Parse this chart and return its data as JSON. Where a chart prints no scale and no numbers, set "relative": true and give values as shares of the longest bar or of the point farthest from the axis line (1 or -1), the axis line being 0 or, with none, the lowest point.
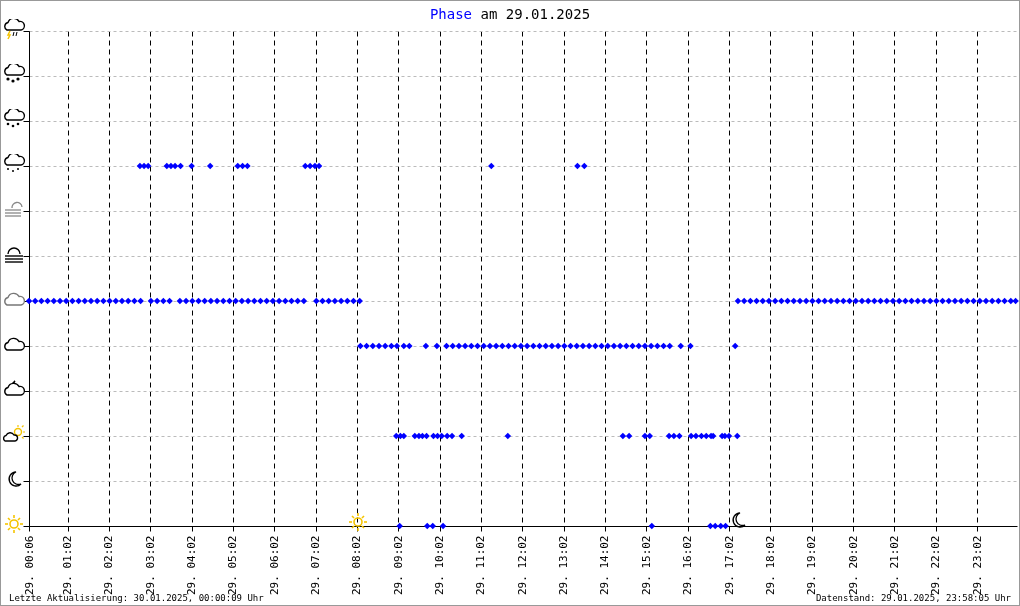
{
  "chart_data": {
    "type": "scatter",
    "title": "Phase am 29.01.2025",
    "annotations": [
      "Letzte Aktualisierung: 30.01.2025, 00:00:09 Uhr",
      "Datenstand: 29.01.2025, 23:58:05 Uhr"
    ],
    "xlim": [
      "2025-01-29T00:06",
      "2025-01-30T00:00"
    ],
    "xticks": [
      {
        "value": "2025-01-29T00:06",
        "label": "29. 00:06"
      },
      {
        "value": "2025-01-29T01:02",
        "label": "29. 01:02"
      },
      {
        "value": "2025-01-29T02:02",
        "label": "29. 02:02"
      },
      {
        "value": "2025-01-29T03:02",
        "label": "29. 03:02"
      },
      {
        "value": "2025-01-29T04:02",
        "label": "29. 04:02"
      },
      {
        "value": "2025-01-29T05:02",
        "label": "29. 05:02"
      },
      {
        "value": "2025-01-29T06:02",
        "label": "29. 06:02"
      },
      {
        "value": "2025-01-29T07:02",
        "label": "29. 07:02"
      },
      {
        "value": "2025-01-29T08:02",
        "label": "29. 08:02"
      },
      {
        "value": "2025-01-29T09:02",
        "label": "29. 09:02"
      },
      {
        "value": "2025-01-29T10:02",
        "label": "29. 10:02"
      },
      {
        "value": "2025-01-29T11:02",
        "label": "29. 11:02"
      },
      {
        "value": "2025-01-29T12:02",
        "label": "29. 12:02"
      },
      {
        "value": "2025-01-29T13:02",
        "label": "29. 13:02"
      },
      {
        "value": "2025-01-29T14:02",
        "label": "29. 14:02"
      },
      {
        "value": "2025-01-29T15:02",
        "label": "29. 15:02"
      },
      {
        "value": "2025-01-29T16:02",
        "label": "29. 16:02"
      },
      {
        "value": "2025-01-29T17:02",
        "label": "29. 17:02"
      },
      {
        "value": "2025-01-29T18:02",
        "label": "29. 18:02"
      },
      {
        "value": "2025-01-29T19:02",
        "label": "29. 19:02"
      },
      {
        "value": "2025-01-29T20:02",
        "label": "29. 20:02"
      },
      {
        "value": "2025-01-29T21:02",
        "label": "29. 21:02"
      },
      {
        "value": "2025-01-29T22:02",
        "label": "29. 22:02"
      },
      {
        "value": "2025-01-29T23:02",
        "label": "29. 23:02"
      }
    ],
    "relative": true,
    "grid": true,
    "marker": "diamond",
    "series": [
      {
        "color": "#0000ff",
        "x": [
          "2025-01-29T00:06",
          "2025-01-29T00:15",
          "2025-01-29T00:24",
          "2025-01-29T00:33",
          "2025-01-29T00:42",
          "2025-01-29T00:51",
          "2025-01-29T01:00",
          "2025-01-29T01:09",
          "2025-01-29T01:18",
          "2025-01-29T01:27",
          "2025-01-29T01:36",
          "2025-01-29T01:45",
          "2025-01-29T01:54",
          "2025-01-29T02:03",
          "2025-01-29T02:12",
          "2025-01-29T02:21",
          "2025-01-29T02:30",
          "2025-01-29T02:39",
          "2025-01-29T02:48",
          "2025-01-29T03:03",
          "2025-01-29T03:12",
          "2025-01-29T03:21",
          "2025-01-29T03:30",
          "2025-01-29T03:45",
          "2025-01-29T03:54",
          "2025-01-29T04:03",
          "2025-01-29T04:12",
          "2025-01-29T04:21",
          "2025-01-29T04:30",
          "2025-01-29T04:39",
          "2025-01-29T04:48",
          "2025-01-29T04:57",
          "2025-01-29T05:06",
          "2025-01-29T05:15",
          "2025-01-29T05:24",
          "2025-01-29T05:33",
          "2025-01-29T05:42",
          "2025-01-29T05:51",
          "2025-01-29T06:00",
          "2025-01-29T06:09",
          "2025-01-29T06:18",
          "2025-01-29T06:27",
          "2025-01-29T06:36",
          "2025-01-29T06:45",
          "2025-01-29T07:03",
          "2025-01-29T07:12",
          "2025-01-29T07:21",
          "2025-01-29T07:30",
          "2025-01-29T07:39",
          "2025-01-29T07:48",
          "2025-01-29T07:57",
          "2025-01-29T08:06",
          "2025-01-29T17:15",
          "2025-01-29T17:24",
          "2025-01-29T17:33",
          "2025-01-29T17:42",
          "2025-01-29T17:51",
          "2025-01-29T18:00",
          "2025-01-29T18:09",
          "2025-01-29T18:18",
          "2025-01-29T18:27",
          "2025-01-29T18:36",
          "2025-01-29T18:45",
          "2025-01-29T18:54",
          "2025-01-29T19:03",
          "2025-01-29T19:12",
          "2025-01-29T19:21",
          "2025-01-29T19:30",
          "2025-01-29T19:39",
          "2025-01-29T19:48",
          "2025-01-29T19:57",
          "2025-01-29T20:06",
          "2025-01-29T20:15",
          "2025-01-29T20:24",
          "2025-01-29T20:33",
          "2025-01-29T20:42",
          "2025-01-29T20:51",
          "2025-01-29T21:00",
          "2025-01-29T21:09",
          "2025-01-29T21:18",
          "2025-01-29T21:27",
          "2025-01-29T21:36",
          "2025-01-29T21:45",
          "2025-01-29T21:54",
          "2025-01-29T22:03",
          "2025-01-29T22:12",
          "2025-01-29T22:21",
          "2025-01-29T22:30",
          "2025-01-29T22:39",
          "2025-01-29T22:48",
          "2025-01-29T22:57",
          "2025-01-29T23:06",
          "2025-01-29T23:15",
          "2025-01-29T23:24",
          "2025-01-29T23:33",
          "2025-01-29T23:42",
          "2025-01-29T23:51",
          "2025-01-29T23:58",
          "2025-01-29T02:47",
          "2025-01-29T02:53",
          "2025-01-29T02:59",
          "2025-01-29T03:26",
          "2025-01-29T03:32",
          "2025-01-29T03:38",
          "2025-01-29T03:46",
          "2025-01-29T04:02",
          "2025-01-29T04:29",
          "2025-01-29T05:09",
          "2025-01-29T05:16",
          "2025-01-29T05:23",
          "2025-01-29T06:47",
          "2025-01-29T06:54",
          "2025-01-29T07:01",
          "2025-01-29T07:07",
          "2025-01-29T11:17",
          "2025-01-29T13:22",
          "2025-01-29T13:32",
          "2025-01-29T08:07",
          "2025-01-29T08:16",
          "2025-01-29T08:25",
          "2025-01-29T08:34",
          "2025-01-29T08:43",
          "2025-01-29T08:52",
          "2025-01-29T09:00",
          "2025-01-29T09:10",
          "2025-01-29T09:18",
          "2025-01-29T09:42",
          "2025-01-29T09:58",
          "2025-01-29T10:12",
          "2025-01-29T10:21",
          "2025-01-29T10:30",
          "2025-01-29T10:39",
          "2025-01-29T10:48",
          "2025-01-29T10:57",
          "2025-01-29T11:06",
          "2025-01-29T11:15",
          "2025-01-29T11:24",
          "2025-01-29T11:33",
          "2025-01-29T11:42",
          "2025-01-29T11:51",
          "2025-01-29T12:00",
          "2025-01-29T12:09",
          "2025-01-29T12:18",
          "2025-01-29T12:27",
          "2025-01-29T12:36",
          "2025-01-29T12:45",
          "2025-01-29T12:54",
          "2025-01-29T13:03",
          "2025-01-29T13:12",
          "2025-01-29T13:21",
          "2025-01-29T13:30",
          "2025-01-29T13:39",
          "2025-01-29T13:48",
          "2025-01-29T13:57",
          "2025-01-29T14:06",
          "2025-01-29T14:15",
          "2025-01-29T14:24",
          "2025-01-29T14:33",
          "2025-01-29T14:42",
          "2025-01-29T14:51",
          "2025-01-29T15:00",
          "2025-01-29T15:09",
          "2025-01-29T15:18",
          "2025-01-29T15:27",
          "2025-01-29T15:36",
          "2025-01-29T15:52",
          "2025-01-29T16:06",
          "2025-01-29T17:11",
          "2025-01-29T08:59",
          "2025-01-29T09:05",
          "2025-01-29T09:10",
          "2025-01-29T09:26",
          "2025-01-29T09:32",
          "2025-01-29T09:37",
          "2025-01-29T09:43",
          "2025-01-29T09:53",
          "2025-01-29T09:59",
          "2025-01-29T10:05",
          "2025-01-29T10:13",
          "2025-01-29T10:20",
          "2025-01-29T10:34",
          "2025-01-29T11:41",
          "2025-01-29T14:28",
          "2025-01-29T14:37",
          "2025-01-29T15:00",
          "2025-01-29T15:07",
          "2025-01-29T15:35",
          "2025-01-29T15:42",
          "2025-01-29T15:50",
          "2025-01-29T16:07",
          "2025-01-29T16:14",
          "2025-01-29T16:22",
          "2025-01-29T16:29",
          "2025-01-29T16:36",
          "2025-01-29T16:39",
          "2025-01-29T16:52",
          "2025-01-29T16:56",
          "2025-01-29T17:02",
          "2025-01-29T17:14",
          "2025-01-29T09:04",
          "2025-01-29T09:44",
          "2025-01-29T09:52",
          "2025-01-29T10:07",
          "2025-01-29T15:10",
          "2025-01-29T16:35",
          "2025-01-29T16:42",
          "2025-01-29T16:50",
          "2025-01-29T16:57"
        ],
        "values": [
          0.625,
          0.625,
          0.625,
          0.625,
          0.625,
          0.625,
          0.625,
          0.625,
          0.625,
          0.625,
          0.625,
          0.625,
          0.625,
          0.625,
          0.625,
          0.625,
          0.625,
          0.625,
          0.625,
          0.625,
          0.625,
          0.625,
          0.625,
          0.625,
          0.625,
          0.625,
          0.625,
          0.625,
          0.625,
          0.625,
          0.625,
          0.625,
          0.625,
          0.625,
          0.625,
          0.625,
          0.625,
          0.625,
          0.625,
          0.625,
          0.625,
          0.625,
          0.625,
          0.625,
          0.625,
          0.625,
          0.625,
          0.625,
          0.625,
          0.625,
          0.625,
          0.625,
          0.625,
          0.625,
          0.625,
          0.625,
          0.625,
          0.625,
          0.625,
          0.625,
          0.625,
          0.625,
          0.625,
          0.625,
          0.625,
          0.625,
          0.625,
          0.625,
          0.625,
          0.625,
          0.625,
          0.625,
          0.625,
          0.625,
          0.625,
          0.625,
          0.625,
          0.625,
          0.625,
          0.625,
          0.625,
          0.625,
          0.625,
          0.625,
          0.625,
          0.625,
          0.625,
          0.625,
          0.625,
          0.625,
          0.625,
          0.625,
          0.625,
          0.625,
          0.625,
          0.625,
          0.625,
          0.625,
          1,
          1,
          1,
          1,
          1,
          1,
          1,
          1,
          1,
          1,
          1,
          1,
          1,
          1,
          1,
          1,
          1,
          1,
          1,
          0.5,
          0.5,
          0.5,
          0.5,
          0.5,
          0.5,
          0.5,
          0.5,
          0.5,
          0.5,
          0.5,
          0.5,
          0.5,
          0.5,
          0.5,
          0.5,
          0.5,
          0.5,
          0.5,
          0.5,
          0.5,
          0.5,
          0.5,
          0.5,
          0.5,
          0.5,
          0.5,
          0.5,
          0.5,
          0.5,
          0.5,
          0.5,
          0.5,
          0.5,
          0.5,
          0.5,
          0.5,
          0.5,
          0.5,
          0.5,
          0.5,
          0.5,
          0.5,
          0.5,
          0.5,
          0.5,
          0.5,
          0.5,
          0.5,
          0.5,
          0.5,
          0.25,
          0.25,
          0.25,
          0.25,
          0.25,
          0.25,
          0.25,
          0.25,
          0.25,
          0.25,
          0.25,
          0.25,
          0.25,
          0.25,
          0.25,
          0.25,
          0.25,
          0.25,
          0.25,
          0.25,
          0.25,
          0.25,
          0.25,
          0.25,
          0.25,
          0.25,
          0.25,
          0.25,
          0.25,
          0.25,
          0.25,
          0,
          0,
          0,
          0,
          0,
          0,
          0,
          0,
          0
        ]
      }
    ]
  }
}
